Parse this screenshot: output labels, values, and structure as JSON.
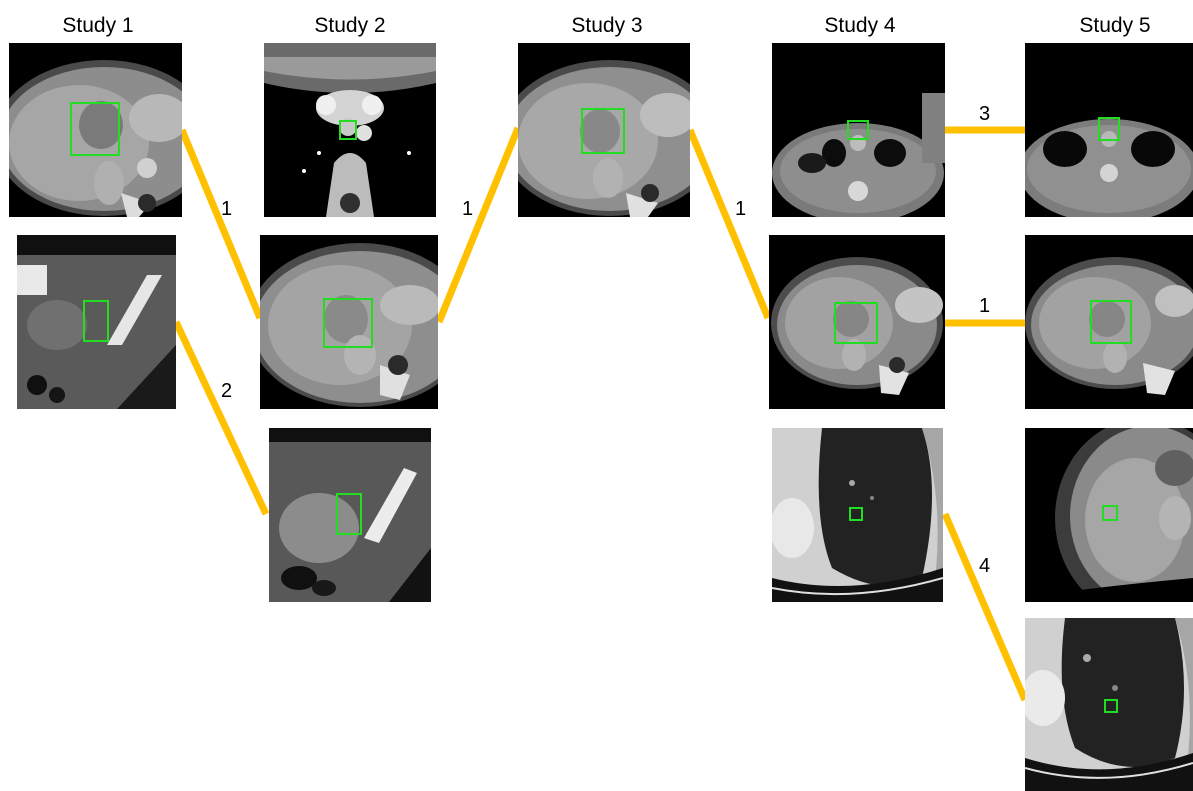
{
  "studies": [
    {
      "label": "Study 1"
    },
    {
      "label": "Study 2"
    },
    {
      "label": "Study 3"
    },
    {
      "label": "Study 4"
    },
    {
      "label": "Study 5"
    }
  ],
  "links": [
    {
      "label": "1"
    },
    {
      "label": "2"
    },
    {
      "label": "1"
    },
    {
      "label": "1"
    },
    {
      "label": "3"
    },
    {
      "label": "1"
    },
    {
      "label": "4"
    }
  ],
  "colors": {
    "link_line": "#ffc000",
    "bounding_box": "#22dd22",
    "background": "#ffffff"
  }
}
